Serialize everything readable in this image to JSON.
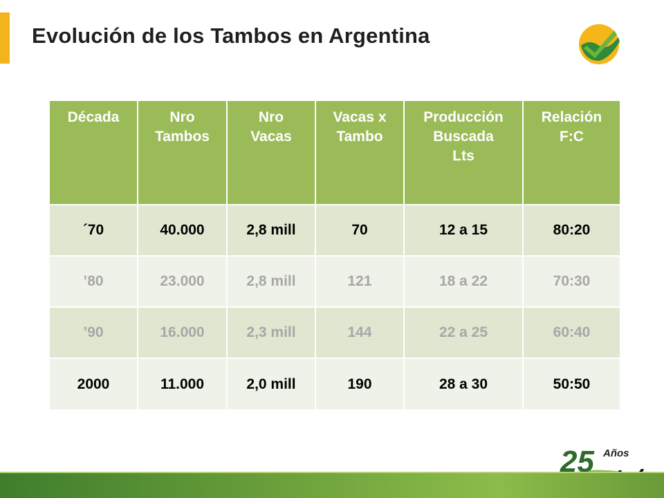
{
  "title": "Evolución de los Tambos en Argentina",
  "colors": {
    "accent_bar": "#f3b41b",
    "header_green": "#9bbb59",
    "row_shade_a": "#dfe7d0",
    "row_shade_b": "#eff2e8",
    "footer_green": "#5e9434"
  },
  "logo": {
    "icon": "sun-checkmark-logo"
  },
  "anniversary": {
    "number": "25",
    "label": "Años",
    "icon": "cows-silhouette-icon"
  },
  "table": {
    "headers": [
      [
        "Década"
      ],
      [
        "Nro",
        "Tambos"
      ],
      [
        "Nro",
        "Vacas"
      ],
      [
        "Vacas x",
        "Tambo"
      ],
      [
        "Producción",
        "Buscada",
        "Lts"
      ],
      [
        "Relación",
        "F:C"
      ]
    ],
    "rows": [
      [
        "´70",
        "40.000",
        "2,8 mill",
        "70",
        "12 a 15",
        "80:20"
      ],
      [
        "’80",
        "23.000",
        "2,8 mill",
        "121",
        "18 a 22",
        "70:30"
      ],
      [
        "’90",
        "16.000",
        "2,3 mill",
        "144",
        "22 a 25",
        "60:40"
      ],
      [
        "2000",
        "11.000",
        "2,0 mill",
        "190",
        "28 a 30",
        "50:50"
      ]
    ]
  }
}
